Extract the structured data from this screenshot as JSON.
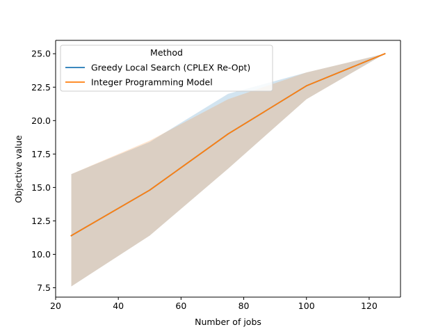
{
  "chart_data": {
    "type": "line",
    "xlabel": "Number of jobs",
    "ylabel": "Objective value",
    "xlim": [
      20,
      130
    ],
    "ylim": [
      6.8,
      26.0
    ],
    "x_ticks": [
      20,
      40,
      60,
      80,
      100,
      120
    ],
    "y_ticks": [
      7.5,
      10.0,
      12.5,
      15.0,
      17.5,
      20.0,
      22.5,
      25.0
    ],
    "grid": false,
    "legend": {
      "title": "Method",
      "placement": "top-left"
    },
    "x": [
      25,
      50,
      75,
      100,
      125
    ],
    "series": [
      {
        "name": "Greedy Local Search (CPLEX Re-Opt)",
        "color": "#1f77b4",
        "values": [
          11.4,
          14.8,
          19.0,
          22.6,
          25.0
        ],
        "band_lower": [
          7.6,
          11.4,
          16.4,
          21.6,
          25.0
        ],
        "band_upper": [
          16.0,
          18.4,
          22.0,
          23.6,
          25.0
        ]
      },
      {
        "name": "Integer Programming Model",
        "color": "#ff7f0e",
        "values": [
          11.4,
          14.8,
          19.0,
          22.6,
          25.0
        ],
        "band_lower": [
          7.6,
          11.4,
          16.4,
          21.6,
          25.0
        ],
        "band_upper": [
          16.0,
          18.5,
          21.6,
          23.6,
          25.0
        ]
      }
    ]
  }
}
